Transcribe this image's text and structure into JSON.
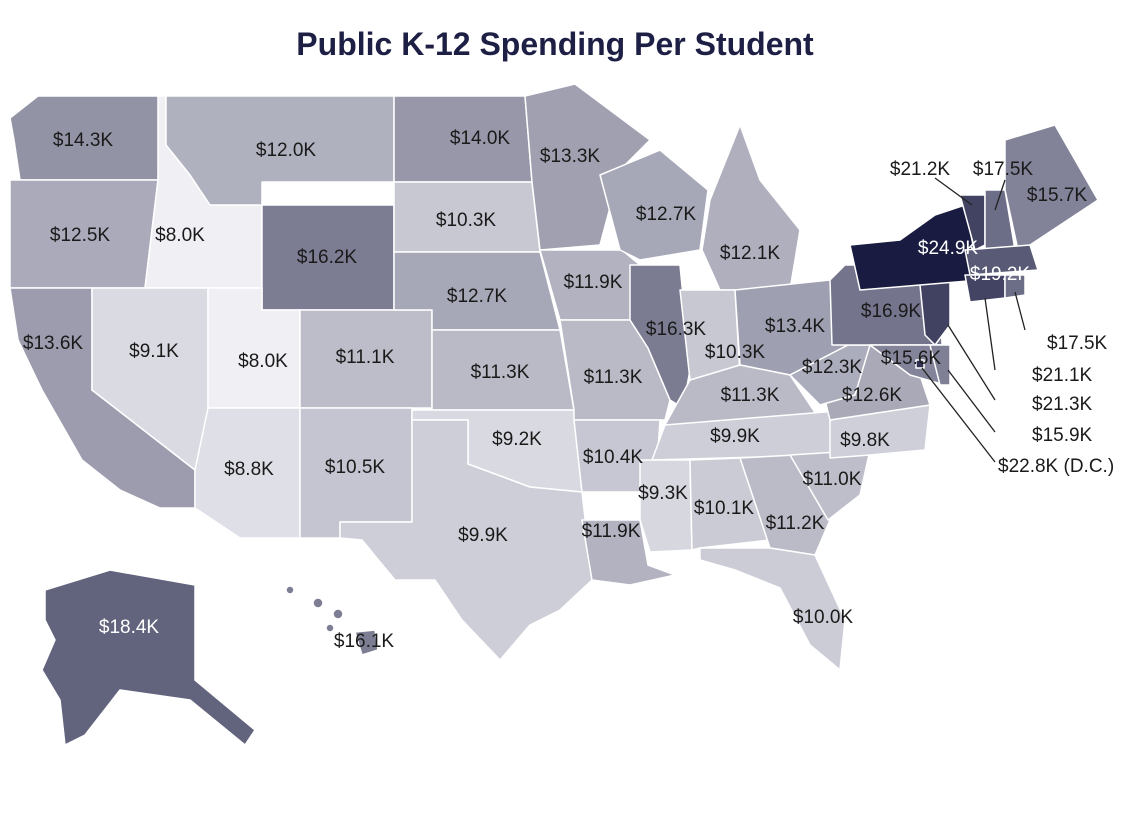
{
  "title": "Public K-12 Spending Per Student",
  "colors": {
    "min": "#efeff4",
    "max": "#1a1b40",
    "border": "#ffffff",
    "label_dark": "#1a1a1a",
    "label_light": "#ffffff",
    "title": "#1e1f45"
  },
  "chart_data": {
    "type": "choropleth",
    "title": "Public K-12 Spending Per Student",
    "unit": "thousand USD",
    "states": [
      {
        "id": "WA",
        "value": 14.3,
        "label": "$14.3K"
      },
      {
        "id": "OR",
        "value": 12.5,
        "label": "$12.5K"
      },
      {
        "id": "CA",
        "value": 13.6,
        "label": "$13.6K"
      },
      {
        "id": "ID",
        "value": 8.0,
        "label": "$8.0K"
      },
      {
        "id": "NV",
        "value": 9.1,
        "label": "$9.1K"
      },
      {
        "id": "MT",
        "value": 12.0,
        "label": "$12.0K"
      },
      {
        "id": "WY",
        "value": 16.2,
        "label": "$16.2K"
      },
      {
        "id": "UT",
        "value": 8.0,
        "label": "$8.0K"
      },
      {
        "id": "AZ",
        "value": 8.8,
        "label": "$8.8K"
      },
      {
        "id": "CO",
        "value": 11.1,
        "label": "$11.1K"
      },
      {
        "id": "NM",
        "value": 10.5,
        "label": "$10.5K"
      },
      {
        "id": "ND",
        "value": 14.0,
        "label": "$14.0K"
      },
      {
        "id": "SD",
        "value": 10.3,
        "label": "$10.3K"
      },
      {
        "id": "NE",
        "value": 12.7,
        "label": "$12.7K"
      },
      {
        "id": "KS",
        "value": 11.3,
        "label": "$11.3K"
      },
      {
        "id": "OK",
        "value": 9.2,
        "label": "$9.2K"
      },
      {
        "id": "TX",
        "value": 9.9,
        "label": "$9.9K"
      },
      {
        "id": "MN",
        "value": 13.3,
        "label": "$13.3K"
      },
      {
        "id": "IA",
        "value": 11.9,
        "label": "$11.9K"
      },
      {
        "id": "MO",
        "value": 11.3,
        "label": "$11.3K"
      },
      {
        "id": "AR",
        "value": 10.4,
        "label": "$10.4K"
      },
      {
        "id": "LA",
        "value": 11.9,
        "label": "$11.9K"
      },
      {
        "id": "WI",
        "value": 12.7,
        "label": "$12.7K"
      },
      {
        "id": "IL",
        "value": 16.3,
        "label": "$16.3K"
      },
      {
        "id": "MI",
        "value": 12.1,
        "label": "$12.1K"
      },
      {
        "id": "IN",
        "value": 10.3,
        "label": "$10.3K"
      },
      {
        "id": "OH",
        "value": 13.4,
        "label": "$13.4K"
      },
      {
        "id": "KY",
        "value": 11.3,
        "label": "$11.3K"
      },
      {
        "id": "TN",
        "value": 9.9,
        "label": "$9.9K"
      },
      {
        "id": "MS",
        "value": 9.3,
        "label": "$9.3K"
      },
      {
        "id": "AL",
        "value": 10.1,
        "label": "$10.1K"
      },
      {
        "id": "GA",
        "value": 11.2,
        "label": "$11.2K"
      },
      {
        "id": "FL",
        "value": 10.0,
        "label": "$10.0K"
      },
      {
        "id": "SC",
        "value": 11.0,
        "label": "$11.0K"
      },
      {
        "id": "NC",
        "value": 9.8,
        "label": "$9.8K"
      },
      {
        "id": "VA",
        "value": 12.6,
        "label": "$12.6K"
      },
      {
        "id": "WV",
        "value": 12.3,
        "label": "$12.3K"
      },
      {
        "id": "PA",
        "value": 16.9,
        "label": "$16.9K"
      },
      {
        "id": "NY",
        "value": 24.9,
        "label": "$24.9K"
      },
      {
        "id": "VT",
        "value": 21.2,
        "label": "$21.2K"
      },
      {
        "id": "NH",
        "value": 17.5,
        "label": "$17.5K"
      },
      {
        "id": "ME",
        "value": 15.7,
        "label": "$15.7K"
      },
      {
        "id": "MA",
        "value": 19.2,
        "label": "$19.2K"
      },
      {
        "id": "RI",
        "value": 17.5,
        "label": "$17.5K"
      },
      {
        "id": "CT",
        "value": 21.1,
        "label": "$21.1K"
      },
      {
        "id": "NJ",
        "value": 21.3,
        "label": "$21.3K"
      },
      {
        "id": "DE",
        "value": 15.9,
        "label": "$15.9K"
      },
      {
        "id": "MD",
        "value": 15.6,
        "label": "$15.6K"
      },
      {
        "id": "DC",
        "value": 22.8,
        "label": "$22.8K (D.C.)"
      },
      {
        "id": "AK",
        "value": 18.4,
        "label": "$18.4K"
      },
      {
        "id": "HI",
        "value": 16.1,
        "label": "$16.1K"
      }
    ]
  }
}
